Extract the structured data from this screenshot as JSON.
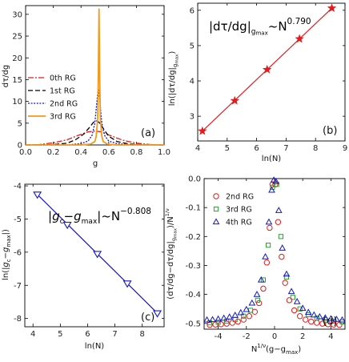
{
  "chart_data": [
    {
      "panel": "(a)",
      "type": "line",
      "xlabel": "g",
      "ylabel": "dτ/dg",
      "xlim": [
        0,
        1
      ],
      "ylim": [
        0,
        32
      ],
      "x_ticks": [
        "0.0",
        "0.2",
        "0.4",
        "0.6",
        "0.8",
        "1.0"
      ],
      "y_ticks": [
        "0",
        "5",
        "10",
        "15",
        "20",
        "25",
        "30"
      ],
      "legend": "left",
      "series": [
        {
          "name": "0th RG",
          "color": "#e41a1c",
          "dash": "7 2 2 2",
          "points": [
            [
              0,
              0
            ],
            [
              0.1,
              0.1
            ],
            [
              0.2,
              0.5
            ],
            [
              0.3,
              1.2
            ],
            [
              0.38,
              2.2
            ],
            [
              0.45,
              3.0
            ],
            [
              0.5,
              3.2
            ],
            [
              0.55,
              3.0
            ],
            [
              0.6,
              2.3
            ],
            [
              0.7,
              1.1
            ],
            [
              0.8,
              0.4
            ],
            [
              0.9,
              0.1
            ],
            [
              1.0,
              0.0
            ]
          ]
        },
        {
          "name": "1st RG",
          "color": "#000000",
          "dash": "6 3",
          "points": [
            [
              0,
              0
            ],
            [
              0.2,
              0.1
            ],
            [
              0.3,
              0.4
            ],
            [
              0.36,
              1.2
            ],
            [
              0.42,
              2.5
            ],
            [
              0.46,
              4.0
            ],
            [
              0.49,
              5.2
            ],
            [
              0.51,
              5.6
            ],
            [
              0.53,
              5.2
            ],
            [
              0.56,
              3.8
            ],
            [
              0.6,
              2.0
            ],
            [
              0.66,
              0.8
            ],
            [
              0.75,
              0.2
            ],
            [
              0.85,
              0.05
            ],
            [
              1.0,
              0.0
            ]
          ]
        },
        {
          "name": "2nd RG",
          "color": "#1515c8",
          "dash": "2 1.6",
          "points": [
            [
              0,
              0
            ],
            [
              0.3,
              0.0
            ],
            [
              0.4,
              0.3
            ],
            [
              0.45,
              0.9
            ],
            [
              0.48,
              2.2
            ],
            [
              0.5,
              5.0
            ],
            [
              0.515,
              10.0
            ],
            [
              0.525,
              13.3
            ],
            [
              0.535,
              10.5
            ],
            [
              0.55,
              5.0
            ],
            [
              0.57,
              2.2
            ],
            [
              0.6,
              0.9
            ],
            [
              0.66,
              0.3
            ],
            [
              0.75,
              0.05
            ],
            [
              1.0,
              0.0
            ]
          ]
        },
        {
          "name": "3rd RG",
          "color": "#f29a1e",
          "dash": "",
          "points": [
            [
              0,
              0
            ],
            [
              0.4,
              0.0
            ],
            [
              0.47,
              0.2
            ],
            [
              0.5,
              0.8
            ],
            [
              0.51,
              2.0
            ],
            [
              0.52,
              6.0
            ],
            [
              0.525,
              15.0
            ],
            [
              0.53,
              31.2
            ],
            [
              0.535,
              15.0
            ],
            [
              0.54,
              6.0
            ],
            [
              0.55,
              2.0
            ],
            [
              0.56,
              0.8
            ],
            [
              0.59,
              0.2
            ],
            [
              0.65,
              0.0
            ],
            [
              1.0,
              0.0
            ]
          ]
        }
      ]
    },
    {
      "panel": "(b)",
      "type": "scatter",
      "xlabel": "ln(N)",
      "ylabel": "ln(|dτ/dg|gmax)",
      "annotation": "|dτ/dg|gmax~N0.790",
      "xlim": [
        4,
        9
      ],
      "ylim": [
        2.3,
        6.2
      ],
      "x_ticks": [
        "4",
        "5",
        "6",
        "7",
        "8",
        "9"
      ],
      "y_ticks": [
        "3",
        "4",
        "5",
        "6"
      ],
      "marker": "star",
      "color": "#e41a1c",
      "x": [
        4.159,
        5.257,
        6.356,
        7.454,
        8.553
      ],
      "y": [
        2.58,
        3.44,
        4.32,
        5.19,
        6.06
      ]
    },
    {
      "panel": "(c)",
      "type": "scatter",
      "xlabel": "ln(N)",
      "ylabel": "ln(|gc−gmax|)",
      "annotation": "|gc−gmax|~N−0.808",
      "xlim": [
        3.7,
        8.8
      ],
      "ylim": [
        -8.25,
        -3.95
      ],
      "x_ticks": [
        "4",
        "5",
        "6",
        "7",
        "8"
      ],
      "y_ticks": [
        "-4",
        "-5",
        "-6",
        "-7",
        "-8"
      ],
      "marker": "triangle-down",
      "color": "#1515c8",
      "x": [
        4.159,
        5.257,
        6.356,
        7.454,
        8.553
      ],
      "y": [
        -4.26,
        -5.17,
        -6.05,
        -6.94,
        -7.84
      ]
    },
    {
      "panel": "(d)",
      "type": "scatter",
      "xlabel": "N^(1/ν)(g−gmax)",
      "ylabel": "(dτ/dg−dτ/dg|gmax)/N^(1/ν)",
      "xlim": [
        -5,
        5
      ],
      "ylim": [
        -0.52,
        0.0
      ],
      "x_ticks": [
        "-4",
        "-2",
        "0",
        "2",
        "4"
      ],
      "y_ticks": [
        "0.0",
        "-0.1",
        "-0.2",
        "-0.3",
        "-0.4",
        "-0.5"
      ],
      "legend": "top-left",
      "series": [
        {
          "name": "2nd RG",
          "color": "#e41a1c",
          "marker": "circle",
          "x": [
            -4.6,
            -4.2,
            -3.8,
            -3.4,
            -3.0,
            -2.6,
            -2.2,
            -1.8,
            -1.4,
            -1.1,
            -0.8,
            -0.55,
            -0.35,
            -0.15,
            0.05,
            0.25,
            0.5,
            0.75,
            1.05,
            1.4,
            1.8,
            2.2,
            2.6,
            3.0,
            3.4,
            3.8,
            4.2,
            4.6
          ],
          "y": [
            -0.505,
            -0.504,
            -0.503,
            -0.501,
            -0.498,
            -0.494,
            -0.487,
            -0.475,
            -0.46,
            -0.43,
            -0.38,
            -0.29,
            -0.17,
            -0.02,
            -0.02,
            -0.15,
            -0.27,
            -0.36,
            -0.42,
            -0.455,
            -0.475,
            -0.487,
            -0.494,
            -0.498,
            -0.501,
            -0.503,
            -0.504,
            -0.505
          ]
        },
        {
          "name": "3rd RG",
          "color": "#2ca02c",
          "marker": "square",
          "x": [
            -4.6,
            -4.0,
            -3.4,
            -2.8,
            -2.2,
            -1.7,
            -1.2,
            -0.8,
            -0.45,
            -0.15,
            0.15,
            0.45,
            0.85,
            1.3,
            1.8,
            2.4,
            3.0,
            3.6,
            4.2,
            4.8
          ],
          "y": [
            -0.498,
            -0.496,
            -0.492,
            -0.487,
            -0.475,
            -0.455,
            -0.42,
            -0.35,
            -0.23,
            -0.03,
            -0.02,
            -0.2,
            -0.34,
            -0.41,
            -0.45,
            -0.47,
            -0.482,
            -0.488,
            -0.492,
            -0.495
          ]
        },
        {
          "name": "4th RG",
          "color": "#1515c8",
          "marker": "triangle",
          "x": [
            -4.8,
            -4.4,
            -4.0,
            -3.6,
            -3.2,
            -2.8,
            -2.4,
            -2.0,
            -1.6,
            -1.25,
            -0.95,
            -0.65,
            -0.4,
            -0.2,
            -0.05,
            0.1,
            0.3,
            0.55,
            0.85,
            1.2,
            1.6,
            2.0,
            2.4,
            2.8,
            3.2,
            3.6,
            4.0,
            4.4,
            4.8
          ],
          "y": [
            -0.488,
            -0.487,
            -0.485,
            -0.482,
            -0.478,
            -0.472,
            -0.463,
            -0.452,
            -0.43,
            -0.4,
            -0.35,
            -0.27,
            -0.15,
            -0.04,
            -0.005,
            -0.01,
            -0.11,
            -0.24,
            -0.33,
            -0.39,
            -0.425,
            -0.448,
            -0.462,
            -0.471,
            -0.477,
            -0.481,
            -0.484,
            -0.486,
            -0.488
          ]
        }
      ]
    }
  ]
}
